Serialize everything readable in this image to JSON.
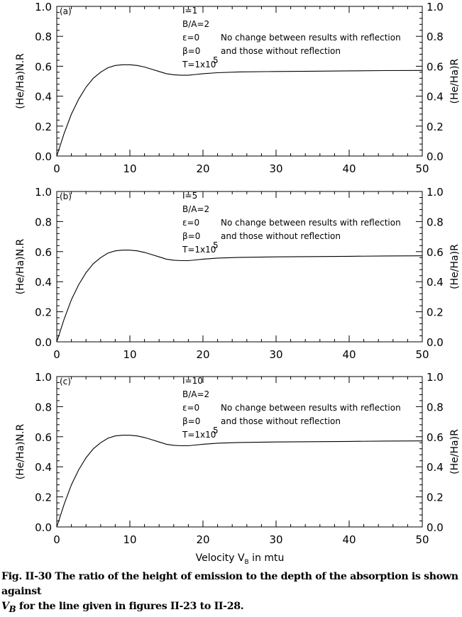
{
  "chart_data": [
    {
      "type": "line",
      "panel_tag": "(a)",
      "ylabel_left": "(He/Ha)N.R",
      "ylabel_right": "(He/Ha)R",
      "xlabel": "",
      "xlim": [
        0,
        50
      ],
      "ylim": [
        0,
        1.0
      ],
      "xticks": [
        "0",
        "10",
        "20",
        "30",
        "40",
        "50"
      ],
      "yticks": [
        "0.0",
        "0.2",
        "0.4",
        "0.6",
        "0.8",
        "1.0"
      ],
      "annotations": [
        "I=1",
        "B/A=2",
        "ε=0",
        "β=0",
        "T=1x10",
        "5",
        "No change between results with reflection",
        "and those without reflection"
      ],
      "x": [
        0,
        1,
        2,
        3,
        4,
        5,
        6,
        7,
        8,
        9,
        10,
        11,
        12,
        13,
        14,
        15,
        16,
        17,
        18,
        19,
        20,
        22,
        25,
        30,
        35,
        40,
        45,
        50
      ],
      "y": [
        0.0,
        0.15,
        0.28,
        0.38,
        0.46,
        0.52,
        0.56,
        0.59,
        0.605,
        0.61,
        0.61,
        0.605,
        0.595,
        0.58,
        0.565,
        0.55,
        0.543,
        0.54,
        0.54,
        0.545,
        0.55,
        0.557,
        0.562,
        0.565,
        0.567,
        0.569,
        0.571,
        0.572
      ]
    },
    {
      "type": "line",
      "panel_tag": "(b)",
      "ylabel_left": "(He/Ha)N.R",
      "ylabel_right": "(He/Ha)R",
      "xlabel": "",
      "xlim": [
        0,
        50
      ],
      "ylim": [
        0,
        1.0
      ],
      "xticks": [
        "0",
        "10",
        "20",
        "30",
        "40",
        "50"
      ],
      "yticks": [
        "0.0",
        "0.2",
        "0.4",
        "0.6",
        "0.8",
        "1.0"
      ],
      "annotations": [
        "I=5",
        "B/A=2",
        "ε=0",
        "β=0",
        "T=1x10",
        "5",
        "No change between results with reflection",
        "and those without reflection"
      ],
      "x": [
        0,
        1,
        2,
        3,
        4,
        5,
        6,
        7,
        8,
        9,
        10,
        11,
        12,
        13,
        14,
        15,
        16,
        17,
        18,
        19,
        20,
        22,
        25,
        30,
        35,
        40,
        45,
        50
      ],
      "y": [
        0.0,
        0.15,
        0.28,
        0.38,
        0.46,
        0.52,
        0.56,
        0.59,
        0.605,
        0.61,
        0.61,
        0.605,
        0.595,
        0.58,
        0.565,
        0.55,
        0.543,
        0.54,
        0.54,
        0.545,
        0.55,
        0.557,
        0.562,
        0.565,
        0.567,
        0.569,
        0.571,
        0.572
      ]
    },
    {
      "type": "line",
      "panel_tag": "(c)",
      "ylabel_left": "(He/Ha)N.R",
      "ylabel_right": "(He/Ha)R",
      "xlabel": "Velocity V",
      "xlabel_sub": "B",
      "xlabel_tail": " in mtu",
      "xlim": [
        0,
        50
      ],
      "ylim": [
        0,
        1.0
      ],
      "xticks": [
        "0",
        "10",
        "20",
        "30",
        "40",
        "50"
      ],
      "yticks": [
        "0.0",
        "0.2",
        "0.4",
        "0.6",
        "0.8",
        "1.0"
      ],
      "annotations": [
        "I=10",
        "B/A=2",
        "ε=0",
        "β=0",
        "T=1x10",
        "5",
        "No change between results with reflection",
        "and those without reflection"
      ],
      "x": [
        0,
        1,
        2,
        3,
        4,
        5,
        6,
        7,
        8,
        9,
        10,
        11,
        12,
        13,
        14,
        15,
        16,
        17,
        18,
        19,
        20,
        22,
        25,
        30,
        35,
        40,
        45,
        50
      ],
      "y": [
        0.0,
        0.15,
        0.28,
        0.38,
        0.46,
        0.52,
        0.56,
        0.59,
        0.605,
        0.61,
        0.61,
        0.605,
        0.595,
        0.58,
        0.565,
        0.55,
        0.543,
        0.54,
        0.54,
        0.545,
        0.55,
        0.557,
        0.562,
        0.565,
        0.567,
        0.569,
        0.571,
        0.572
      ]
    }
  ],
  "caption": {
    "lead": "Fig. II-30 The ratio of the height of emission to the depth of the absorption is shown against",
    "var": "V",
    "var_sub": "B",
    "tail": " for the line given in figures II-23 to II-28."
  }
}
